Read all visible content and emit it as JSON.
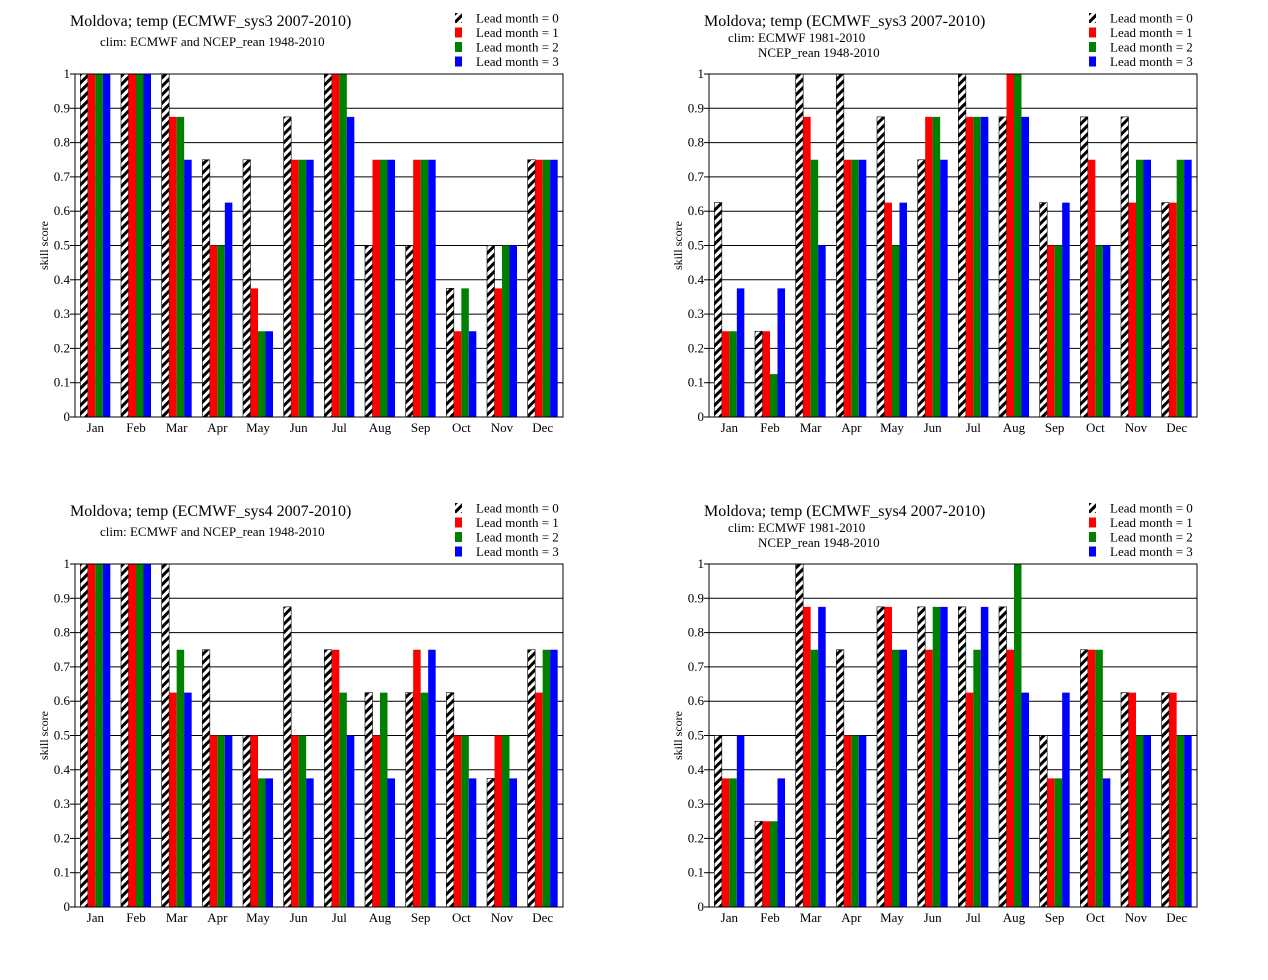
{
  "colors": {
    "lead0": "hatched-black-white",
    "lead1": "#ff0000",
    "lead2": "#008000",
    "lead3": "#0000ff",
    "grid": "#000000"
  },
  "chart_data": [
    {
      "type": "bar",
      "title": "Moldova; temp (ECMWF_sys3 2007-2010)",
      "subtitle": [
        "clim: ECMWF and NCEP_rean 1948-2010"
      ],
      "ylabel": "skill  score",
      "xlabel": "",
      "ylim": [
        0,
        1
      ],
      "yticks": [
        "0",
        "0.1",
        "0.2",
        "0.3",
        "0.4",
        "0.5",
        "0.6",
        "0.7",
        "0.8",
        "0.9",
        "1"
      ],
      "grid": true,
      "legend": "top-right",
      "categories": [
        "Jan",
        "Feb",
        "Mar",
        "Apr",
        "May",
        "Jun",
        "Jul",
        "Aug",
        "Sep",
        "Oct",
        "Nov",
        "Dec"
      ],
      "series": [
        {
          "name": "Lead month = 0",
          "values": [
            1,
            1,
            1,
            0.75,
            0.75,
            0.875,
            1,
            0.5,
            0.5,
            0.375,
            0.5,
            0.75
          ]
        },
        {
          "name": "Lead month = 1",
          "values": [
            1,
            1,
            0.875,
            0.5,
            0.375,
            0.75,
            1,
            0.75,
            0.75,
            0.25,
            0.375,
            0.75
          ]
        },
        {
          "name": "Lead month = 2",
          "values": [
            1,
            1,
            0.875,
            0.5,
            0.25,
            0.75,
            1,
            0.75,
            0.75,
            0.375,
            0.5,
            0.75
          ]
        },
        {
          "name": "Lead month = 3",
          "values": [
            1,
            1,
            0.75,
            0.625,
            0.25,
            0.75,
            0.875,
            0.75,
            0.75,
            0.25,
            0.5,
            0.75
          ]
        }
      ]
    },
    {
      "type": "bar",
      "title": "Moldova; temp (ECMWF_sys3 2007-2010)",
      "subtitle": [
        "clim: ECMWF 1981-2010",
        "NCEP_rean 1948-2010"
      ],
      "ylabel": "skill  score",
      "xlabel": "",
      "ylim": [
        0,
        1
      ],
      "yticks": [
        "0",
        "0.1",
        "0.2",
        "0.3",
        "0.4",
        "0.5",
        "0.6",
        "0.7",
        "0.8",
        "0.9",
        "1"
      ],
      "grid": true,
      "legend": "top-right",
      "categories": [
        "Jan",
        "Feb",
        "Mar",
        "Apr",
        "May",
        "Jun",
        "Jul",
        "Aug",
        "Sep",
        "Oct",
        "Nov",
        "Dec"
      ],
      "series": [
        {
          "name": "Lead month = 0",
          "values": [
            0.625,
            0.25,
            1,
            1,
            0.875,
            0.75,
            1,
            0.875,
            0.625,
            0.875,
            0.875,
            0.625
          ]
        },
        {
          "name": "Lead month = 1",
          "values": [
            0.25,
            0.25,
            0.875,
            0.75,
            0.625,
            0.875,
            0.875,
            1,
            0.5,
            0.75,
            0.625,
            0.625
          ]
        },
        {
          "name": "Lead month = 2",
          "values": [
            0.25,
            0.125,
            0.75,
            0.75,
            0.5,
            0.875,
            0.875,
            1,
            0.5,
            0.5,
            0.75,
            0.75
          ]
        },
        {
          "name": "Lead month = 3",
          "values": [
            0.375,
            0.375,
            0.5,
            0.75,
            0.625,
            0.75,
            0.875,
            0.875,
            0.625,
            0.5,
            0.75,
            0.75
          ]
        }
      ]
    },
    {
      "type": "bar",
      "title": "Moldova; temp (ECMWF_sys4 2007-2010)",
      "subtitle": [
        "clim: ECMWF and NCEP_rean 1948-2010"
      ],
      "ylabel": "skill  score",
      "xlabel": "",
      "ylim": [
        0,
        1
      ],
      "yticks": [
        "0",
        "0.1",
        "0.2",
        "0.3",
        "0.4",
        "0.5",
        "0.6",
        "0.7",
        "0.8",
        "0.9",
        "1"
      ],
      "grid": true,
      "legend": "top-right",
      "categories": [
        "Jan",
        "Feb",
        "Mar",
        "Apr",
        "May",
        "Jun",
        "Jul",
        "Aug",
        "Sep",
        "Oct",
        "Nov",
        "Dec"
      ],
      "series": [
        {
          "name": "Lead month = 0",
          "values": [
            1,
            1,
            1,
            0.75,
            0.5,
            0.875,
            0.75,
            0.625,
            0.625,
            0.625,
            0.375,
            0.75
          ]
        },
        {
          "name": "Lead month = 1",
          "values": [
            1,
            1,
            0.625,
            0.5,
            0.5,
            0.5,
            0.75,
            0.5,
            0.75,
            0.5,
            0.5,
            0.625
          ]
        },
        {
          "name": "Lead month = 2",
          "values": [
            1,
            1,
            0.75,
            0.5,
            0.375,
            0.5,
            0.625,
            0.625,
            0.625,
            0.5,
            0.5,
            0.75
          ]
        },
        {
          "name": "Lead month = 3",
          "values": [
            1,
            1,
            0.625,
            0.5,
            0.375,
            0.375,
            0.5,
            0.375,
            0.75,
            0.375,
            0.375,
            0.75
          ]
        }
      ]
    },
    {
      "type": "bar",
      "title": "Moldova; temp (ECMWF_sys4 2007-2010)",
      "subtitle": [
        "clim: ECMWF 1981-2010",
        "NCEP_rean 1948-2010"
      ],
      "ylabel": "skill  score",
      "xlabel": "",
      "ylim": [
        0,
        1
      ],
      "yticks": [
        "0",
        "0.1",
        "0.2",
        "0.3",
        "0.4",
        "0.5",
        "0.6",
        "0.7",
        "0.8",
        "0.9",
        "1"
      ],
      "grid": true,
      "legend": "top-right",
      "categories": [
        "Jan",
        "Feb",
        "Mar",
        "Apr",
        "May",
        "Jun",
        "Jul",
        "Aug",
        "Sep",
        "Oct",
        "Nov",
        "Dec"
      ],
      "series": [
        {
          "name": "Lead month = 0",
          "values": [
            0.5,
            0.25,
            1,
            0.75,
            0.875,
            0.875,
            0.875,
            0.875,
            0.5,
            0.75,
            0.625,
            0.625
          ]
        },
        {
          "name": "Lead month = 1",
          "values": [
            0.375,
            0.25,
            0.875,
            0.5,
            0.875,
            0.75,
            0.625,
            0.75,
            0.375,
            0.75,
            0.625,
            0.625
          ]
        },
        {
          "name": "Lead month = 2",
          "values": [
            0.375,
            0.25,
            0.75,
            0.5,
            0.75,
            0.875,
            0.75,
            1,
            0.375,
            0.75,
            0.5,
            0.5
          ]
        },
        {
          "name": "Lead month = 3",
          "values": [
            0.5,
            0.375,
            0.875,
            0.5,
            0.75,
            0.875,
            0.875,
            0.625,
            0.625,
            0.375,
            0.5,
            0.5
          ]
        }
      ]
    }
  ]
}
